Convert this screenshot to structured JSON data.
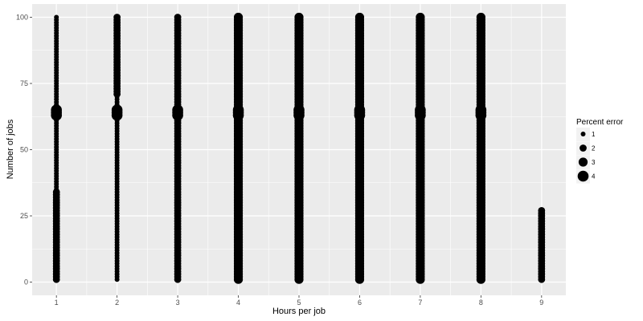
{
  "chart_data": {
    "type": "scatter",
    "title": "",
    "xlabel": "Hours per job",
    "ylabel": "Number of jobs",
    "x_ticks": [
      "1",
      "2",
      "3",
      "4",
      "5",
      "6",
      "7",
      "8",
      "9"
    ],
    "y_ticks": [
      0,
      25,
      50,
      75,
      100
    ],
    "xlim": [
      0.6,
      9.4
    ],
    "ylim": [
      -5,
      105
    ],
    "grid": true,
    "legend": {
      "title": "Percent error",
      "position": "right",
      "entries": [
        {
          "label": "1",
          "size_value": 1
        },
        {
          "label": "2",
          "size_value": 2
        },
        {
          "label": "3",
          "size_value": 3
        },
        {
          "label": "4",
          "size_value": 4
        }
      ]
    },
    "colors": {
      "panel": "#ebebeb",
      "grid": "#ffffff",
      "points": "#000000"
    },
    "series": [
      {
        "x": 1,
        "segments": [
          {
            "y_from": 1,
            "y_to": 34,
            "size_value": 2
          },
          {
            "y_from": 35,
            "y_to": 100,
            "size_value": 1
          },
          {
            "y_from": 63,
            "y_to": 65,
            "size_value": 4
          }
        ]
      },
      {
        "x": 2,
        "segments": [
          {
            "y_from": 1,
            "y_to": 70,
            "size_value": 1
          },
          {
            "y_from": 71,
            "y_to": 100,
            "size_value": 2
          },
          {
            "y_from": 63,
            "y_to": 65,
            "size_value": 4
          }
        ]
      },
      {
        "x": 3,
        "segments": [
          {
            "y_from": 1,
            "y_to": 100,
            "size_value": 2
          },
          {
            "y_from": 63,
            "y_to": 65,
            "size_value": 4
          }
        ]
      },
      {
        "x": 4,
        "segments": [
          {
            "y_from": 1,
            "y_to": 100,
            "size_value": 3
          },
          {
            "y_from": 63,
            "y_to": 65,
            "size_value": 4
          }
        ]
      },
      {
        "x": 5,
        "segments": [
          {
            "y_from": 1,
            "y_to": 100,
            "size_value": 3
          },
          {
            "y_from": 63,
            "y_to": 65,
            "size_value": 4
          }
        ]
      },
      {
        "x": 6,
        "segments": [
          {
            "y_from": 1,
            "y_to": 100,
            "size_value": 3
          },
          {
            "y_from": 63,
            "y_to": 65,
            "size_value": 4
          }
        ]
      },
      {
        "x": 7,
        "segments": [
          {
            "y_from": 1,
            "y_to": 100,
            "size_value": 3
          },
          {
            "y_from": 63,
            "y_to": 65,
            "size_value": 4
          }
        ]
      },
      {
        "x": 8,
        "segments": [
          {
            "y_from": 1,
            "y_to": 100,
            "size_value": 3
          },
          {
            "y_from": 63,
            "y_to": 65,
            "size_value": 4
          }
        ]
      },
      {
        "x": 9,
        "segments": [
          {
            "y_from": 1,
            "y_to": 27,
            "size_value": 2
          }
        ]
      }
    ]
  }
}
